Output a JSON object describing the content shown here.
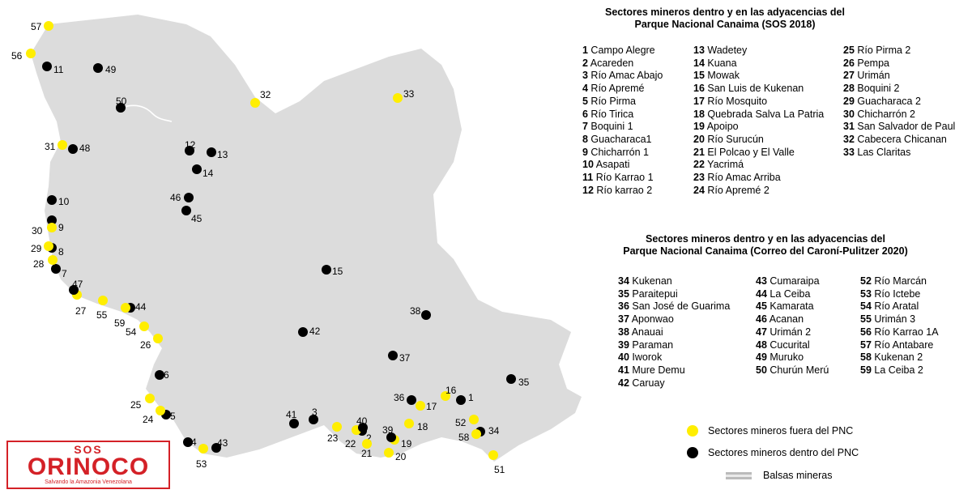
{
  "titles": {
    "sos2018": [
      "Sectores mineros dentro y en las adyacencias del",
      "Parque Nacional Canaima (SOS 2018)"
    ],
    "correo2020": [
      "Sectores mineros dentro y en las adyacencias del",
      "Parque Nacional Canaima (Correo del Caroní-Pulitzer 2020)"
    ]
  },
  "sectors_2018": {
    "col1": [
      [
        "1",
        "Campo Alegre"
      ],
      [
        "2",
        "Acareden"
      ],
      [
        "3",
        "Río Amac Abajo"
      ],
      [
        "4",
        "Río Apremé"
      ],
      [
        "5",
        "Río Pirma"
      ],
      [
        "6",
        "Río Tirica"
      ],
      [
        "7",
        "Boquini 1"
      ],
      [
        "8",
        "Guacharaca1"
      ],
      [
        "9",
        "Chicharrón 1"
      ],
      [
        "10",
        "Asapati"
      ],
      [
        "11",
        "Río Karrao 1"
      ],
      [
        "12",
        "Río karrao 2"
      ]
    ],
    "col2": [
      [
        "13",
        "Wadetey"
      ],
      [
        "14",
        "Kuana"
      ],
      [
        "15",
        "Mowak"
      ],
      [
        "16",
        "San Luis de Kukenan"
      ],
      [
        "17",
        "Río Mosquito"
      ],
      [
        "18",
        "Quebrada Salva La Patria"
      ],
      [
        "19",
        "Apoipo"
      ],
      [
        "20",
        "Río Surucún"
      ],
      [
        "21",
        "El Polcao y El Valle"
      ],
      [
        "22",
        "Yacrimá"
      ],
      [
        "23",
        "Río  Amac Arriba"
      ],
      [
        "24",
        "Río Apremé 2"
      ]
    ],
    "col3": [
      [
        "25",
        "Río Pirma 2"
      ],
      [
        "26",
        "Pempa"
      ],
      [
        "27",
        "Urimán"
      ],
      [
        "28",
        "Boquini 2"
      ],
      [
        "29",
        "Guacharaca 2"
      ],
      [
        "30",
        "Chicharrón 2"
      ],
      [
        "31",
        "San Salvador de Paul"
      ],
      [
        "32",
        "Cabecera Chicanan"
      ],
      [
        "33",
        "Las Claritas"
      ]
    ]
  },
  "sectors_2020": {
    "col1": [
      [
        "34",
        "Kukenan"
      ],
      [
        "35",
        "Paraitepui"
      ],
      [
        "36",
        "San José de Guarima"
      ],
      [
        "37",
        "Aponwao"
      ],
      [
        "38",
        "Anauai"
      ],
      [
        "39",
        "Paraman"
      ],
      [
        "40",
        "Iworok"
      ],
      [
        "41",
        "Mure Demu"
      ],
      [
        "42",
        "Caruay"
      ]
    ],
    "col2": [
      [
        "43",
        "Cumaraipa"
      ],
      [
        "44",
        "La Ceiba"
      ],
      [
        "45",
        "Kamarata"
      ],
      [
        "46",
        "Acanan"
      ],
      [
        "47",
        "Urimán 2"
      ],
      [
        "48",
        "Cucurital"
      ],
      [
        "49",
        "Muruko"
      ],
      [
        "50",
        "Churún Merú"
      ]
    ],
    "col3": [
      [
        "52",
        "Río Marcán"
      ],
      [
        "53",
        "Río Ictebe"
      ],
      [
        "54",
        "Río Aratal"
      ],
      [
        "55",
        "Urimán 3"
      ],
      [
        "56",
        "Río Karrao 1A"
      ],
      [
        "57",
        "Río Antabare"
      ],
      [
        "58",
        "Kukenan 2"
      ],
      [
        "59",
        "La Ceiba 2"
      ]
    ]
  },
  "legend": {
    "outside": "Sectores mineros fuera del PNC",
    "inside": "Sectores mineros dentro del PNC",
    "balsas": "Balsas mineras"
  },
  "logo": {
    "line1": "SOS",
    "line2": "ORINOCO",
    "line3": "Salvando la Amazonia Venezolana"
  },
  "colors": {
    "outside": "#ffee00",
    "inside": "#000000",
    "park": "#dcdcdc",
    "logo": "#d42127"
  },
  "markers": [
    {
      "label": "1",
      "category": "inside"
    },
    {
      "label": "2",
      "category": "inside"
    },
    {
      "label": "3",
      "category": "inside"
    },
    {
      "label": "4",
      "category": "inside"
    },
    {
      "label": "5",
      "category": "inside"
    },
    {
      "label": "6",
      "category": "inside"
    },
    {
      "label": "7",
      "category": "inside"
    },
    {
      "label": "8",
      "category": "inside"
    },
    {
      "label": "9",
      "category": "inside"
    },
    {
      "label": "10",
      "category": "inside"
    },
    {
      "label": "11",
      "category": "inside"
    },
    {
      "label": "12",
      "category": "inside"
    },
    {
      "label": "13",
      "category": "inside"
    },
    {
      "label": "14",
      "category": "inside"
    },
    {
      "label": "15",
      "category": "inside"
    },
    {
      "label": "16",
      "category": "outside"
    },
    {
      "label": "17",
      "category": "outside"
    },
    {
      "label": "18",
      "category": "outside"
    },
    {
      "label": "19",
      "category": "outside"
    },
    {
      "label": "20",
      "category": "outside"
    },
    {
      "label": "21",
      "category": "outside"
    },
    {
      "label": "22",
      "category": "outside"
    },
    {
      "label": "23",
      "category": "outside"
    },
    {
      "label": "24",
      "category": "outside"
    },
    {
      "label": "25",
      "category": "outside"
    },
    {
      "label": "26",
      "category": "outside"
    },
    {
      "label": "27",
      "category": "outside"
    },
    {
      "label": "28",
      "category": "outside"
    },
    {
      "label": "29",
      "category": "outside"
    },
    {
      "label": "30",
      "category": "outside"
    },
    {
      "label": "31",
      "category": "outside"
    },
    {
      "label": "32",
      "category": "outside"
    },
    {
      "label": "33",
      "category": "outside"
    },
    {
      "label": "34",
      "category": "inside"
    },
    {
      "label": "35",
      "category": "inside"
    },
    {
      "label": "36",
      "category": "inside"
    },
    {
      "label": "37",
      "category": "inside"
    },
    {
      "label": "38",
      "category": "inside"
    },
    {
      "label": "39",
      "category": "inside"
    },
    {
      "label": "40",
      "category": "inside"
    },
    {
      "label": "41",
      "category": "inside"
    },
    {
      "label": "42",
      "category": "inside"
    },
    {
      "label": "43",
      "category": "inside"
    },
    {
      "label": "44",
      "category": "inside"
    },
    {
      "label": "45",
      "category": "inside"
    },
    {
      "label": "46",
      "category": "inside"
    },
    {
      "label": "47",
      "category": "inside"
    },
    {
      "label": "48",
      "category": "inside"
    },
    {
      "label": "49",
      "category": "inside"
    },
    {
      "label": "50",
      "category": "inside"
    },
    {
      "label": "51",
      "category": "outside"
    },
    {
      "label": "52",
      "category": "outside"
    },
    {
      "label": "53",
      "category": "outside"
    },
    {
      "label": "54",
      "category": "outside"
    },
    {
      "label": "55",
      "category": "outside"
    },
    {
      "label": "56",
      "category": "outside"
    },
    {
      "label": "57",
      "category": "outside"
    },
    {
      "label": "58",
      "category": "outside"
    },
    {
      "label": "59",
      "category": "outside"
    }
  ]
}
